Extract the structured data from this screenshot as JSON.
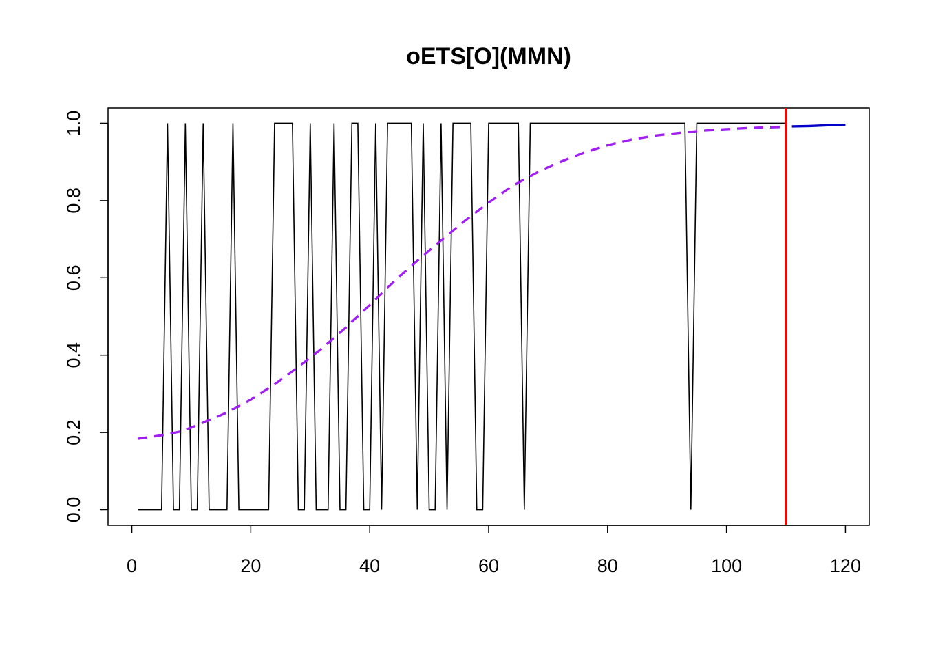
{
  "chart_data": {
    "type": "line",
    "title": "oETS[O](MMN)",
    "xlabel": "",
    "ylabel": "",
    "xlim": [
      -4,
      124
    ],
    "ylim": [
      -0.04,
      1.04
    ],
    "x_ticks": [
      0,
      20,
      40,
      60,
      80,
      100,
      120
    ],
    "y_ticks": [
      0.0,
      0.2,
      0.4,
      0.6,
      0.8,
      1.0
    ],
    "y_tick_labels": [
      "0.0",
      "0.2",
      "0.4",
      "0.6",
      "0.8",
      "1.0"
    ],
    "grid": false,
    "legend": "none",
    "holdout_start": 110,
    "series": [
      {
        "role": "actuals",
        "color": "#000000",
        "style": "solid",
        "x_start": 1,
        "values": [
          0,
          0,
          0,
          0,
          0,
          1,
          0,
          0,
          1,
          0,
          0,
          1,
          0,
          0,
          0,
          0,
          1,
          0,
          0,
          0,
          0,
          0,
          0,
          1,
          1,
          1,
          1,
          0,
          0,
          1,
          0,
          0,
          0,
          1,
          0,
          0,
          1,
          1,
          0,
          0,
          1,
          0,
          1,
          1,
          1,
          1,
          1,
          0,
          1,
          0,
          0,
          1,
          0,
          1,
          1,
          1,
          1,
          0,
          0,
          1,
          1,
          1,
          1,
          1,
          1,
          0,
          1,
          1,
          1,
          1,
          1,
          1,
          1,
          1,
          1,
          1,
          1,
          1,
          1,
          1,
          1,
          1,
          1,
          1,
          1,
          1,
          1,
          1,
          1,
          1,
          1,
          1,
          1,
          0,
          1,
          1,
          1,
          1,
          1,
          1,
          1,
          1,
          1,
          1,
          1,
          1,
          1,
          1,
          1,
          1
        ]
      },
      {
        "role": "fitted",
        "color": "#a020f0",
        "style": "dashed",
        "points": [
          [
            1,
            0.184
          ],
          [
            5,
            0.193
          ],
          [
            8,
            0.202
          ],
          [
            10,
            0.213
          ],
          [
            13,
            0.232
          ],
          [
            16,
            0.252
          ],
          [
            20,
            0.285
          ],
          [
            24,
            0.325
          ],
          [
            28,
            0.37
          ],
          [
            32,
            0.418
          ],
          [
            36,
            0.472
          ],
          [
            40,
            0.53
          ],
          [
            44,
            0.59
          ],
          [
            48,
            0.645
          ],
          [
            52,
            0.697
          ],
          [
            56,
            0.748
          ],
          [
            60,
            0.795
          ],
          [
            64,
            0.838
          ],
          [
            68,
            0.872
          ],
          [
            72,
            0.9
          ],
          [
            76,
            0.924
          ],
          [
            80,
            0.943
          ],
          [
            84,
            0.958
          ],
          [
            88,
            0.968
          ],
          [
            92,
            0.975
          ],
          [
            96,
            0.981
          ],
          [
            100,
            0.985
          ],
          [
            104,
            0.988
          ],
          [
            110,
            0.991
          ]
        ]
      },
      {
        "role": "forecast",
        "color": "#0000cd",
        "style": "solid",
        "points": [
          [
            111,
            0.992
          ],
          [
            114,
            0.993
          ],
          [
            117,
            0.995
          ],
          [
            120,
            0.996
          ]
        ]
      }
    ],
    "vline": {
      "x": 110,
      "color": "#ff0000"
    }
  }
}
